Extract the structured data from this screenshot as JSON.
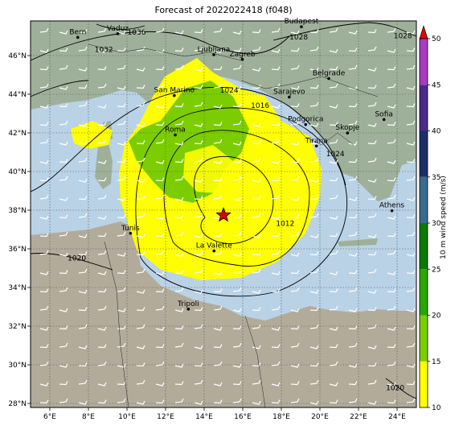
{
  "title": "Forecast of 2022022418 (f048)",
  "axes": {
    "lon_ticks": [
      "6°E",
      "8°E",
      "10°E",
      "12°E",
      "14°E",
      "16°E",
      "18°E",
      "20°E",
      "22°E",
      "24°E"
    ],
    "lat_ticks": [
      "46°N",
      "44°N",
      "42°N",
      "40°N",
      "38°N",
      "36°N",
      "34°N",
      "32°N",
      "30°N",
      "28°N"
    ],
    "lon_range": [
      5,
      25
    ],
    "lat_range": [
      27.8,
      47.8
    ],
    "grid": true
  },
  "colorbar": {
    "label": "10 m wind speed (m/s)",
    "ticks": [
      "10",
      "15",
      "20",
      "25",
      "30",
      "35",
      "40",
      "45",
      "50"
    ],
    "colors": [
      "#ffff00",
      "#7ccd00",
      "#2aa800",
      "#0a7a00",
      "#3a6b8f",
      "#1a2f66",
      "#4a2a88",
      "#7a2fa8",
      "#a63cc0"
    ],
    "extend_color": "#e00000"
  },
  "cities": [
    {
      "name": "Bern",
      "lon": 7.45,
      "lat": 46.95
    },
    {
      "name": "Vaduz",
      "lon": 9.52,
      "lat": 47.14
    },
    {
      "name": "Budapest",
      "lon": 19.04,
      "lat": 47.5
    },
    {
      "name": "Ljubljana",
      "lon": 14.5,
      "lat": 46.05
    },
    {
      "name": "Zagreb",
      "lon": 15.98,
      "lat": 45.81
    },
    {
      "name": "Belgrade",
      "lon": 20.46,
      "lat": 44.82
    },
    {
      "name": "San Marino",
      "lon": 12.45,
      "lat": 43.94
    },
    {
      "name": "Sarajevo",
      "lon": 18.41,
      "lat": 43.86
    },
    {
      "name": "Sofia",
      "lon": 23.32,
      "lat": 42.7
    },
    {
      "name": "Podgorica",
      "lon": 19.26,
      "lat": 42.44
    },
    {
      "name": "Skopje",
      "lon": 21.43,
      "lat": 42.0
    },
    {
      "name": "Roma",
      "lon": 12.5,
      "lat": 41.9
    },
    {
      "name": "Tirana",
      "lon": 19.82,
      "lat": 41.33
    },
    {
      "name": "Athens",
      "lon": 23.73,
      "lat": 37.98
    },
    {
      "name": "Tunis",
      "lon": 10.18,
      "lat": 36.81
    },
    {
      "name": "La Valette",
      "lon": 14.51,
      "lat": 35.9
    },
    {
      "name": "Tripoli",
      "lon": 13.18,
      "lat": 32.89
    }
  ],
  "isobar_labels": [
    {
      "text": "1036",
      "lon": 10.5,
      "lat": 47.1
    },
    {
      "text": "1032",
      "lon": 8.8,
      "lat": 46.2
    },
    {
      "text": "1028",
      "lon": 18.9,
      "lat": 46.85
    },
    {
      "text": "1028",
      "lon": 24.3,
      "lat": 46.9
    },
    {
      "text": "1024",
      "lon": 15.3,
      "lat": 44.1
    },
    {
      "text": "1024",
      "lon": 20.8,
      "lat": 40.8
    },
    {
      "text": "1016",
      "lon": 16.9,
      "lat": 43.3
    },
    {
      "text": "1012",
      "lon": 18.2,
      "lat": 37.2
    },
    {
      "text": "1020",
      "lon": 7.4,
      "lat": 35.4
    },
    {
      "text": "1020",
      "lon": 23.9,
      "lat": 28.7
    }
  ],
  "storm_marker": {
    "lon": 15.0,
    "lat": 37.75
  }
}
